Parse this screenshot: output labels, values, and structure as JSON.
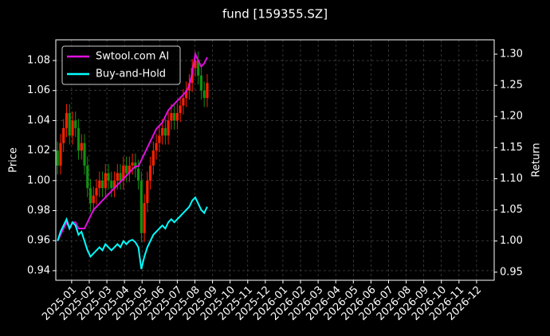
{
  "chart_data": {
    "type": "candlestick_returns",
    "title": "fund [159355.SZ]",
    "y_label": "Price",
    "y2_label": "Return",
    "up_color": "#ff2000",
    "down_color": "#109010",
    "grid": true,
    "legend": "upper left",
    "x": [
      -0.8,
      -0.63,
      -0.46,
      -0.29,
      -0.12,
      0.05,
      0.22,
      0.39,
      0.56,
      0.73,
      0.9,
      1.07,
      1.24,
      1.41,
      1.58,
      1.75,
      1.92,
      2.09,
      2.26,
      2.43,
      2.6,
      2.77,
      2.94,
      3.11,
      3.28,
      3.45,
      3.62,
      3.79,
      3.96,
      4.13,
      4.3,
      4.47,
      4.64,
      4.81,
      4.98,
      5.15,
      5.32,
      5.49,
      5.66,
      5.83,
      6.0,
      6.17,
      6.34,
      6.51,
      6.68,
      6.85,
      7.02,
      7.19,
      7.36,
      7.53,
      7.7
    ],
    "open": [
      1.02,
      1.01,
      1.025,
      1.035,
      1.045,
      1.03,
      1.04,
      1.035,
      1.02,
      1.025,
      1.01,
      0.995,
      0.985,
      0.99,
      0.995,
      1.0,
      0.995,
      1.005,
      1.0,
      0.995,
      1.0,
      1.005,
      1.0,
      1.01,
      1.005,
      1.01,
      1.012,
      1.008,
      1.0,
      0.965,
      0.985,
      1.0,
      1.01,
      1.02,
      1.025,
      1.03,
      1.035,
      1.03,
      1.04,
      1.045,
      1.04,
      1.045,
      1.05,
      1.055,
      1.06,
      1.065,
      1.075,
      1.08,
      1.07,
      1.06,
      1.055
    ],
    "high": [
      1.026,
      1.031,
      1.041,
      1.051,
      1.051,
      1.046,
      1.046,
      1.041,
      1.031,
      1.031,
      1.016,
      1.001,
      0.996,
      1.001,
      1.006,
      1.006,
      1.011,
      1.011,
      1.006,
      1.006,
      1.011,
      1.011,
      1.016,
      1.016,
      1.016,
      1.018,
      1.018,
      1.014,
      1.006,
      0.991,
      1.006,
      1.016,
      1.026,
      1.031,
      1.036,
      1.041,
      1.041,
      1.046,
      1.051,
      1.051,
      1.051,
      1.056,
      1.061,
      1.066,
      1.071,
      1.081,
      1.086,
      1.086,
      1.076,
      1.066,
      1.071
    ],
    "low": [
      1.004,
      1.004,
      1.019,
      1.029,
      1.024,
      1.024,
      1.029,
      1.014,
      1.014,
      1.004,
      0.989,
      0.979,
      0.979,
      0.984,
      0.989,
      0.989,
      0.989,
      0.994,
      0.989,
      0.989,
      0.994,
      0.994,
      0.994,
      0.999,
      0.999,
      1.004,
      1.002,
      0.994,
      0.959,
      0.959,
      0.979,
      0.994,
      1.004,
      1.014,
      1.019,
      1.024,
      1.024,
      1.024,
      1.034,
      1.034,
      1.034,
      1.039,
      1.044,
      1.049,
      1.054,
      1.059,
      1.069,
      1.064,
      1.054,
      1.049,
      1.049
    ],
    "close": [
      1.01,
      1.025,
      1.035,
      1.045,
      1.03,
      1.04,
      1.035,
      1.02,
      1.025,
      1.01,
      0.995,
      0.985,
      0.99,
      0.995,
      1.0,
      0.995,
      1.005,
      1.0,
      0.995,
      1.0,
      1.005,
      1.0,
      1.01,
      1.005,
      1.01,
      1.012,
      1.008,
      1.0,
      0.965,
      0.985,
      1.0,
      1.01,
      1.02,
      1.025,
      1.03,
      1.035,
      1.03,
      1.04,
      1.045,
      1.04,
      1.045,
      1.05,
      1.055,
      1.06,
      1.065,
      1.075,
      1.08,
      1.07,
      1.06,
      1.055,
      1.065
    ],
    "series": [
      {
        "name": "Swtool.com AI",
        "color": "#e010e0",
        "axis": "y2",
        "values": [
          1.0,
          1.01,
          1.02,
          1.03,
          1.02,
          1.03,
          1.03,
          1.02,
          1.02,
          1.02,
          1.03,
          1.04,
          1.05,
          1.055,
          1.06,
          1.065,
          1.07,
          1.075,
          1.08,
          1.085,
          1.09,
          1.095,
          1.1,
          1.105,
          1.11,
          1.115,
          1.12,
          1.12,
          1.13,
          1.14,
          1.15,
          1.16,
          1.17,
          1.18,
          1.185,
          1.19,
          1.2,
          1.21,
          1.215,
          1.22,
          1.225,
          1.23,
          1.235,
          1.24,
          1.25,
          1.27,
          1.3,
          1.29,
          1.28,
          1.285,
          1.295
        ]
      },
      {
        "name": "Buy-and-Hold",
        "color": "#00ffff",
        "axis": "y2",
        "values": [
          1.0,
          1.015,
          1.025,
          1.035,
          1.02,
          1.03,
          1.025,
          1.01,
          1.015,
          1.0,
          0.985,
          0.975,
          0.98,
          0.985,
          0.99,
          0.985,
          0.995,
          0.99,
          0.985,
          0.99,
          0.995,
          0.99,
          1.0,
          0.995,
          1.0,
          1.002,
          0.998,
          0.99,
          0.955,
          0.975,
          0.99,
          1.0,
          1.01,
          1.015,
          1.02,
          1.025,
          1.02,
          1.03,
          1.035,
          1.03,
          1.035,
          1.04,
          1.045,
          1.05,
          1.055,
          1.065,
          1.07,
          1.06,
          1.05,
          1.045,
          1.055
        ]
      }
    ],
    "xlim": [
      -0.9,
      24
    ],
    "xticks": [
      {
        "value": 0,
        "label": "2025-01"
      },
      {
        "value": 1,
        "label": "2025-02"
      },
      {
        "value": 2,
        "label": "2025-03"
      },
      {
        "value": 3,
        "label": "2025-04"
      },
      {
        "value": 4,
        "label": "2025-05"
      },
      {
        "value": 5,
        "label": "2025-06"
      },
      {
        "value": 6,
        "label": "2025-07"
      },
      {
        "value": 7,
        "label": "2025-08"
      },
      {
        "value": 8,
        "label": "2025-09"
      },
      {
        "value": 9,
        "label": "2025-10"
      },
      {
        "value": 10,
        "label": "2025-11"
      },
      {
        "value": 11,
        "label": "2025-12"
      },
      {
        "value": 12,
        "label": "2026-01"
      },
      {
        "value": 13,
        "label": "2026-02"
      },
      {
        "value": 14,
        "label": "2026-03"
      },
      {
        "value": 15,
        "label": "2026-04"
      },
      {
        "value": 16,
        "label": "2026-05"
      },
      {
        "value": 17,
        "label": "2026-06"
      },
      {
        "value": 18,
        "label": "2026-07"
      },
      {
        "value": 19,
        "label": "2026-08"
      },
      {
        "value": 20,
        "label": "2026-09"
      },
      {
        "value": 21,
        "label": "2026-10"
      },
      {
        "value": 22,
        "label": "2026-11"
      },
      {
        "value": 23,
        "label": "2026-12"
      }
    ],
    "ylim": [
      0.9336,
      1.0938
    ],
    "yticks": [
      0.94,
      0.96,
      0.98,
      {
        "value": 1,
        "label": "1.00"
      },
      1.02,
      1.04,
      1.06,
      1.08
    ],
    "y2lim": [
      0.937,
      1.323
    ],
    "y2ticks": [
      0.95,
      {
        "value": 1,
        "label": "1.00"
      },
      1.05,
      {
        "value": 1.1,
        "label": "1.10"
      },
      1.15,
      {
        "value": 1.2,
        "label": "1.20"
      },
      1.25,
      {
        "value": 1.3,
        "label": "1.30"
      }
    ]
  }
}
